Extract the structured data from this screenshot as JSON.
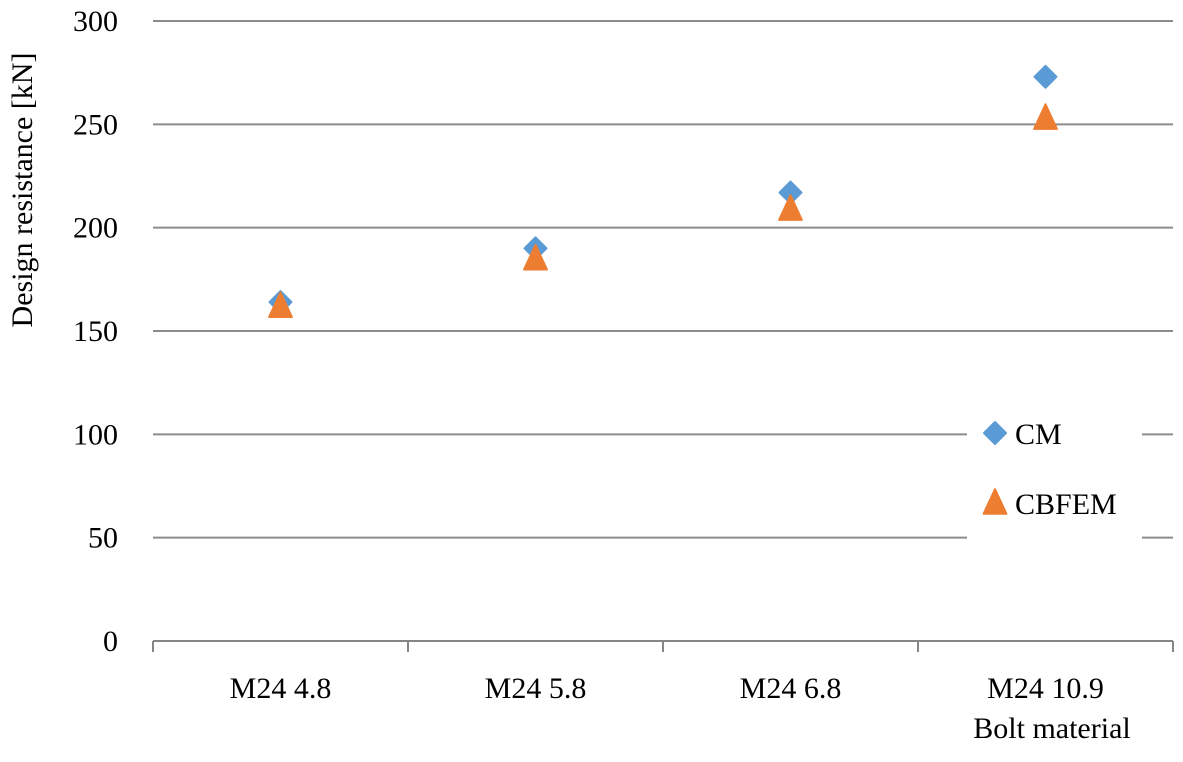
{
  "chart_data": {
    "type": "scatter",
    "title": "",
    "xlabel": "Bolt material",
    "ylabel": "Design resistance [kN]",
    "categories": [
      "M24 4.8",
      "M24 5.8",
      "M24 6.8",
      "M24 10.9"
    ],
    "ylim": [
      0,
      300
    ],
    "yticks": [
      0,
      50,
      100,
      150,
      200,
      250,
      300
    ],
    "grid": true,
    "legend_position": "right",
    "series": [
      {
        "name": "CM",
        "marker": "diamond",
        "color": "#5B9BD5",
        "values": [
          164,
          190,
          217,
          273
        ]
      },
      {
        "name": "CBFEM",
        "marker": "triangle",
        "color": "#ED7D31",
        "values": [
          162,
          185,
          209,
          253
        ]
      }
    ]
  }
}
